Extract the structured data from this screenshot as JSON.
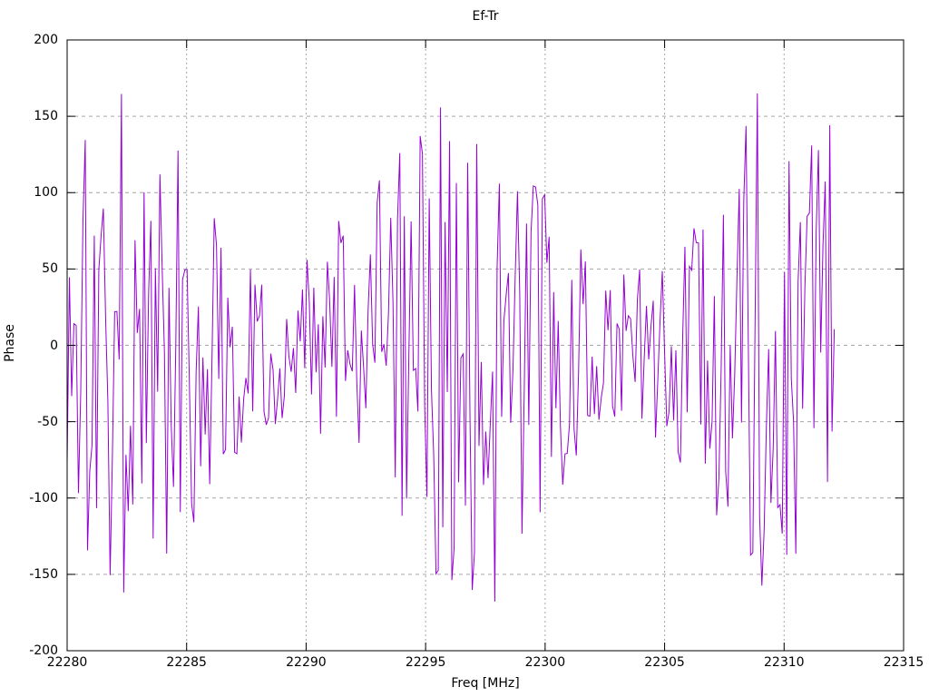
{
  "chart_data": {
    "type": "line",
    "title": "Ef-Tr",
    "xlabel": "Freq [MHz]",
    "ylabel": "Phase",
    "xlim": [
      22280,
      22315
    ],
    "ylim": [
      -200,
      200
    ],
    "x_ticks": [
      22280,
      22285,
      22290,
      22295,
      22300,
      22305,
      22310,
      22315
    ],
    "y_ticks": [
      -200,
      -150,
      -100,
      -50,
      0,
      50,
      100,
      150,
      200
    ],
    "grid": true,
    "legend": "none",
    "colors": {
      "line": "#9400d3",
      "grid": "#a6a6a6",
      "axis": "#000000",
      "text": "#000000",
      "background": "#ffffff"
    },
    "series": [
      {
        "name": "Ef-Tr",
        "color": "#9400d3",
        "x_start": 22280.0,
        "x_end": 22312.1,
        "num_points": 340,
        "amplitude_deg": 180,
        "envelope_dip_centers_mhz": [
          22289.3,
          22303.3
        ],
        "envelope_period_mhz": 14,
        "envelope_min": 0.3,
        "envelope_max": 1.0,
        "character": "wrapped interferometric phase noise, values uniformly scattered between -180 and +180 degrees, connected by near-vertical line segments",
        "seed": 1337
      }
    ]
  }
}
